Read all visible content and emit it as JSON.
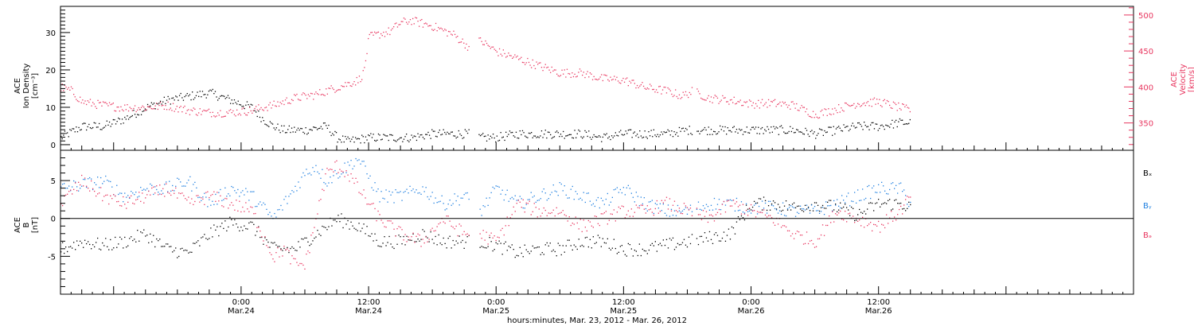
{
  "colors": {
    "black": "#000000",
    "pink": "#e8365f",
    "blue": "#1e7fe0"
  },
  "xaxis": {
    "title": "hours:minutes, Mar. 23, 2012 - Mar. 26, 2012",
    "range_hours": [
      -17,
      84
    ],
    "ticks": [
      {
        "h": 0,
        "time": "0:00",
        "date": "Mar.24"
      },
      {
        "h": 12,
        "time": "12:00",
        "date": "Mar.24"
      },
      {
        "h": 24,
        "time": "0:00",
        "date": "Mar.25"
      },
      {
        "h": 36,
        "time": "12:00",
        "date": "Mar.25"
      },
      {
        "h": 48,
        "time": "0:00",
        "date": "Mar.26"
      },
      {
        "h": 60,
        "time": "12:00",
        "date": "Mar.26"
      }
    ]
  },
  "top_panel": {
    "left_label": [
      "ACE",
      "Ion Density",
      "[cm⁻³]"
    ],
    "right_label": [
      "ACE",
      "Velocity",
      "[km/s]"
    ],
    "left_ticks": [
      "0",
      "10",
      "20",
      "30"
    ],
    "right_ticks": [
      "350",
      "400",
      "450",
      "500"
    ]
  },
  "bottom_panel": {
    "left_label": [
      "ACE",
      "B",
      "[nT]"
    ],
    "left_ticks": [
      "-5",
      "0",
      "5"
    ],
    "legend": [
      {
        "text": "Bₓ",
        "color_key": "black"
      },
      {
        "text": "Bᵧ",
        "color_key": "blue"
      },
      {
        "text": "Bₔ",
        "color_key": "pink"
      }
    ]
  },
  "chart_data": [
    {
      "type": "scatter",
      "title": "",
      "xlabel": "hours:minutes, Mar. 23, 2012 - Mar. 26, 2012",
      "ylabel": "ACE Ion Density [cm-3]",
      "ylabel_right": "ACE Velocity [km/s]",
      "xlim": [
        -17,
        84
      ],
      "ylim": [
        -1.5,
        37
      ],
      "ylim_right": [
        312,
        512
      ],
      "data_gaps_hours": [
        [
          21.5,
          22.3
        ],
        [
          42.5,
          42.8
        ]
      ],
      "series": [
        {
          "name": "Ion Density",
          "axis": "left",
          "color_key": "black",
          "x": [
            -17,
            -15,
            -13,
            -11,
            -9,
            -7,
            -5,
            -3,
            -1,
            1,
            2,
            3,
            4,
            6,
            8,
            9,
            10,
            12,
            14,
            16,
            18,
            20,
            21.5,
            22.5,
            24,
            26,
            28,
            30,
            32,
            34,
            36,
            38,
            40,
            42,
            44,
            46,
            48,
            50,
            52,
            54,
            56,
            58,
            60,
            62,
            63
          ],
          "y": [
            2,
            5,
            5,
            7,
            10,
            12,
            13,
            14,
            12,
            10,
            7,
            5,
            4,
            4,
            5,
            2,
            1,
            2,
            2,
            2,
            3,
            3,
            3,
            2,
            2,
            3,
            3,
            3,
            3,
            2,
            3,
            3,
            3,
            4,
            4,
            4,
            4,
            4,
            4,
            3,
            4,
            5,
            5,
            6,
            6
          ]
        },
        {
          "name": "Velocity",
          "axis": "right",
          "color_key": "pink",
          "x": [
            -17,
            -16,
            -15,
            -13,
            -11,
            -9,
            -7,
            -5,
            -3,
            -1,
            1,
            2,
            3,
            5,
            7,
            9,
            10,
            11,
            11.5,
            12,
            14,
            15,
            16,
            18,
            20,
            21.5,
            22.5,
            24,
            26,
            28,
            30,
            32,
            34,
            36,
            38,
            40,
            41.5,
            42.5,
            44,
            46,
            47,
            48,
            50,
            52,
            53,
            54,
            56,
            58,
            60,
            62,
            63
          ],
          "y": [
            400,
            395,
            380,
            375,
            372,
            372,
            375,
            368,
            365,
            365,
            368,
            372,
            375,
            385,
            390,
            400,
            405,
            410,
            420,
            470,
            478,
            490,
            493,
            485,
            473,
            455,
            465,
            450,
            440,
            430,
            420,
            420,
            412,
            410,
            400,
            395,
            388,
            395,
            385,
            382,
            380,
            377,
            378,
            375,
            368,
            362,
            370,
            378,
            380,
            372,
            368
          ]
        }
      ]
    },
    {
      "type": "scatter",
      "title": "",
      "xlabel": "hours:minutes, Mar. 23, 2012 - Mar. 26, 2012",
      "ylabel": "ACE B [nT]",
      "xlim": [
        -17,
        84
      ],
      "ylim": [
        -10,
        9
      ],
      "zero_line": true,
      "series": [
        {
          "name": "Bx",
          "color_key": "black",
          "x": [
            -17,
            -15,
            -13,
            -11,
            -9,
            -7,
            -5,
            -3,
            -1,
            1,
            3,
            5,
            7,
            9,
            11,
            13,
            15,
            17,
            19,
            21,
            22.5,
            24,
            26,
            28,
            30,
            32,
            34,
            36,
            38,
            40,
            42,
            44,
            46,
            48,
            50,
            52,
            54,
            56,
            58,
            60,
            62,
            63
          ],
          "y": [
            -4,
            -3,
            -3.5,
            -3,
            -2,
            -4,
            -4.5,
            -2,
            -0.5,
            -1,
            -4,
            -4,
            -2,
            0,
            -1,
            -3,
            -3,
            -2,
            -3,
            -3,
            -3,
            -3.5,
            -4.5,
            -4,
            -4,
            -3,
            -3,
            -4,
            -4,
            -3.5,
            -3,
            -2.5,
            -2,
            2,
            2,
            1.5,
            2,
            1.5,
            0.5,
            2,
            2,
            1.5
          ]
        },
        {
          "name": "By",
          "color_key": "blue",
          "x": [
            -17,
            -15,
            -13,
            -11,
            -9,
            -7,
            -5,
            -3,
            -1,
            1,
            3,
            4,
            5,
            6,
            7,
            8,
            9,
            10,
            11,
            13,
            15,
            17,
            19,
            21,
            22.5,
            24,
            26,
            28,
            30,
            32,
            34,
            36,
            38,
            40,
            42,
            44,
            46,
            48,
            50,
            52,
            54,
            56,
            58,
            60,
            62,
            63
          ],
          "y": [
            4,
            4.5,
            5,
            3,
            4,
            4,
            5,
            2,
            4,
            3,
            0,
            2,
            4,
            6,
            7,
            5,
            6,
            7,
            8,
            3,
            3,
            4,
            2,
            3,
            1,
            4,
            2,
            3,
            4,
            3,
            2,
            4,
            2,
            1,
            1,
            2,
            2,
            1.5,
            1.5,
            1,
            1,
            2,
            3,
            4,
            4,
            2
          ]
        },
        {
          "name": "Bz",
          "color_key": "pink",
          "x": [
            -17,
            -15,
            -13,
            -11,
            -9,
            -7,
            -5,
            -3,
            -1,
            1,
            2,
            3,
            4,
            5,
            6,
            7,
            8,
            9,
            10,
            11,
            13,
            15,
            17,
            19,
            21,
            22.5,
            24,
            26,
            28,
            30,
            32,
            34,
            36,
            38,
            40,
            42,
            44,
            46,
            48,
            50,
            52,
            54,
            56,
            58,
            60,
            62,
            63
          ],
          "y": [
            2,
            5,
            3,
            2,
            3,
            4,
            2,
            3,
            2,
            1,
            -2,
            -5,
            -4,
            -6,
            -6,
            0,
            6,
            7,
            6,
            4,
            0,
            -2,
            -3,
            0,
            -2,
            -2,
            -3,
            2,
            1,
            1,
            -1,
            0,
            1,
            1,
            2,
            1,
            0,
            2,
            1,
            0,
            -2,
            -3,
            1,
            0,
            -1,
            1,
            3
          ]
        }
      ]
    }
  ]
}
